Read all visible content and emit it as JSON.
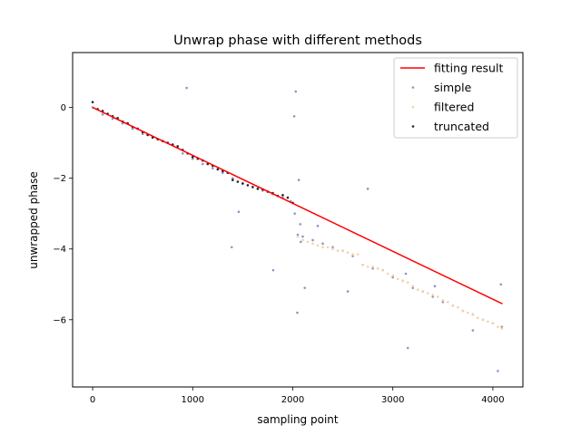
{
  "chart_data": {
    "type": "scatter",
    "title": "Unwrap phase with different methods",
    "xlabel": "sampling point",
    "ylabel": "unwrapped phase",
    "xlim": [
      -200,
      4300
    ],
    "ylim": [
      -7.9,
      1.55
    ],
    "xticks": [
      0,
      1000,
      2000,
      3000,
      4000
    ],
    "yticks": [
      -6,
      -4,
      -2,
      0
    ],
    "xtick_labels": [
      "0",
      "1000",
      "2000",
      "3000",
      "4000"
    ],
    "ytick_labels": [
      "−6",
      "−4",
      "−2",
      "0"
    ],
    "grid": false,
    "legend_position": "top-right",
    "series": [
      {
        "name": "fitting result",
        "kind": "line",
        "color": "#ff0000",
        "x": [
          0,
          4095
        ],
        "y": [
          0.0,
          -5.55
        ]
      },
      {
        "name": "simple",
        "kind": "scatter",
        "color": "#8e94c8",
        "x": [
          0,
          100,
          200,
          300,
          400,
          500,
          600,
          700,
          800,
          900,
          1000,
          1100,
          1200,
          1300,
          1400,
          1500,
          1600,
          1700,
          1800,
          1900,
          1980,
          2020,
          2050,
          2080,
          2100,
          2200,
          2300,
          2400,
          2500,
          2600,
          2700,
          2800,
          2900,
          3000,
          3100,
          3200,
          3300,
          3400,
          3500,
          3600,
          3700,
          3800,
          3900,
          4000,
          4090,
          2030,
          2015,
          2060,
          2120,
          2250,
          2550,
          2750,
          3150,
          3420,
          3800,
          4050,
          2045,
          2075,
          940,
          1460,
          1390,
          1805,
          3130,
          4080
        ],
        "y": [
          0.0,
          -0.2,
          -0.32,
          -0.45,
          -0.6,
          -0.75,
          -0.85,
          -0.95,
          -1.05,
          -1.3,
          -1.45,
          -1.6,
          -1.72,
          -1.85,
          -2.0,
          -2.15,
          -2.25,
          -2.35,
          -2.45,
          -2.55,
          -2.65,
          -3.0,
          -3.6,
          -3.8,
          -3.65,
          -3.75,
          -3.85,
          -3.95,
          -4.05,
          -4.2,
          -4.45,
          -4.55,
          -4.6,
          -4.8,
          -4.9,
          -5.1,
          -5.2,
          -5.35,
          -5.5,
          -5.6,
          -5.75,
          -5.85,
          -6.0,
          -6.1,
          -6.2,
          0.45,
          -0.25,
          -2.05,
          -5.1,
          -3.35,
          -5.2,
          -2.3,
          -6.8,
          -5.05,
          -6.3,
          -7.45,
          -5.8,
          -3.3,
          0.55,
          -2.95,
          -3.95,
          -4.6,
          -4.7,
          -5.0
        ]
      },
      {
        "name": "filtered",
        "kind": "scatter",
        "color": "#f2d3a6",
        "x": [
          2050,
          2100,
          2150,
          2200,
          2250,
          2300,
          2350,
          2400,
          2450,
          2500,
          2550,
          2600,
          2650,
          2700,
          2750,
          2800,
          2850,
          2900,
          2950,
          3000,
          3050,
          3100,
          3150,
          3200,
          3250,
          3300,
          3350,
          3400,
          3450,
          3500,
          3550,
          3600,
          3650,
          3700,
          3750,
          3800,
          3850,
          3900,
          3950,
          4000,
          4050,
          4090
        ],
        "y": [
          -3.65,
          -3.75,
          -3.8,
          -3.85,
          -3.9,
          -3.95,
          -3.95,
          -4.0,
          -4.05,
          -4.05,
          -4.1,
          -4.15,
          -4.15,
          -4.45,
          -4.5,
          -4.5,
          -4.55,
          -4.6,
          -4.7,
          -4.75,
          -4.85,
          -4.9,
          -4.95,
          -5.05,
          -5.15,
          -5.2,
          -5.25,
          -5.3,
          -5.35,
          -5.45,
          -5.5,
          -5.6,
          -5.65,
          -5.75,
          -5.8,
          -5.85,
          -5.95,
          -6.0,
          -6.05,
          -6.1,
          -6.2,
          -6.25
        ]
      },
      {
        "name": "truncated",
        "kind": "scatter",
        "color": "#1f2430",
        "x": [
          0,
          50,
          100,
          150,
          200,
          250,
          300,
          350,
          400,
          450,
          500,
          550,
          600,
          650,
          700,
          750,
          800,
          850,
          900,
          950,
          1000,
          1050,
          1100,
          1150,
          1200,
          1250,
          1300,
          1350,
          1400,
          1450,
          1500,
          1550,
          1600,
          1650,
          1700,
          1750,
          1800,
          1850,
          1900,
          1950,
          2000
        ],
        "y": [
          0.15,
          -0.05,
          -0.1,
          -0.18,
          -0.25,
          -0.3,
          -0.4,
          -0.45,
          -0.55,
          -0.6,
          -0.7,
          -0.78,
          -0.85,
          -0.9,
          -0.95,
          -1.0,
          -1.05,
          -1.1,
          -1.2,
          -1.3,
          -1.4,
          -1.45,
          -1.5,
          -1.6,
          -1.65,
          -1.75,
          -1.8,
          -1.85,
          -2.05,
          -2.1,
          -2.15,
          -2.2,
          -2.25,
          -2.3,
          -2.32,
          -2.38,
          -2.42,
          -2.5,
          -2.48,
          -2.55,
          -2.7
        ]
      }
    ]
  }
}
